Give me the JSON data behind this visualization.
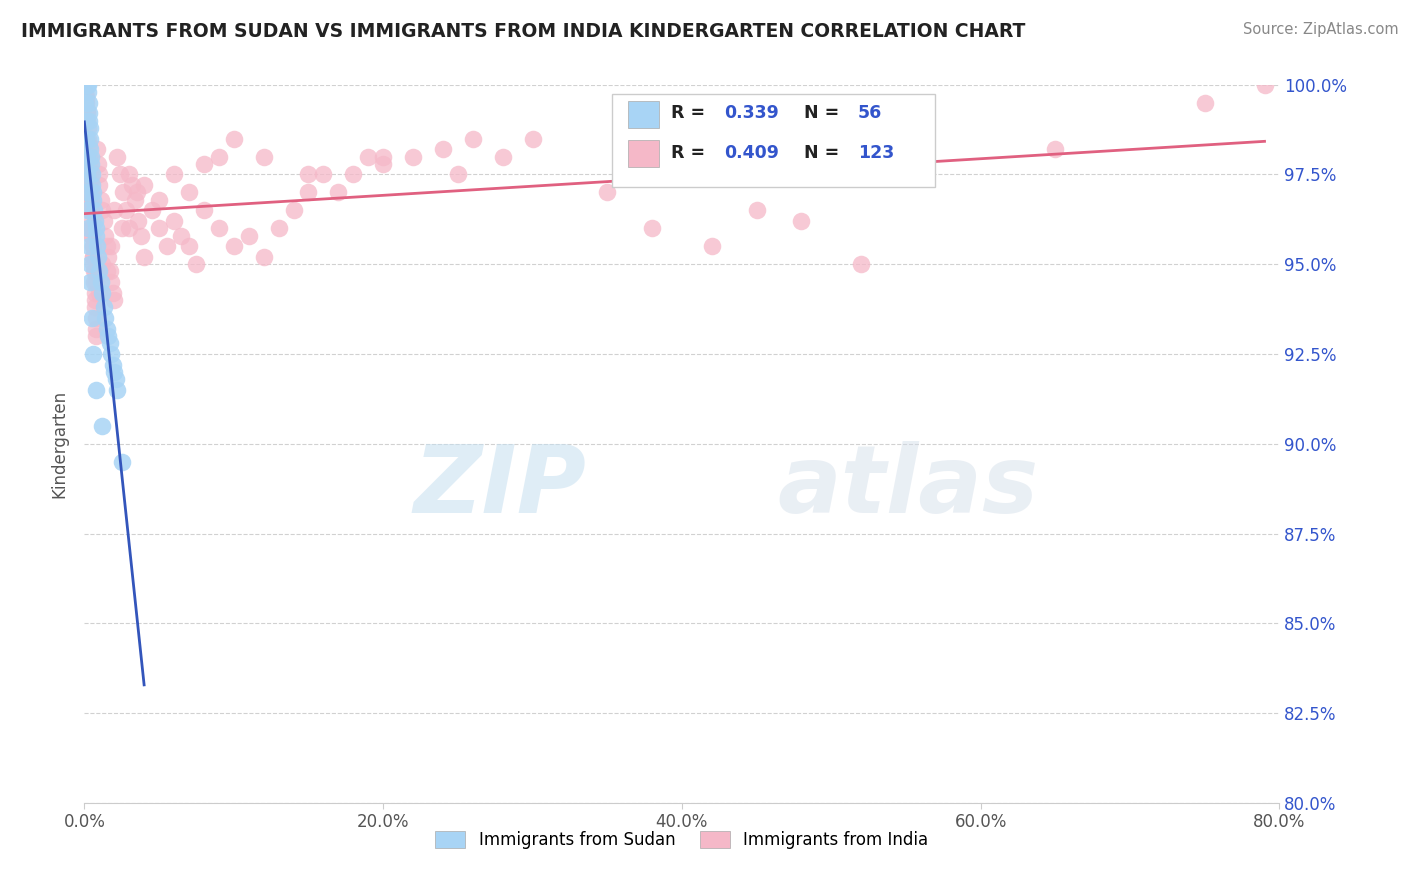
{
  "title": "IMMIGRANTS FROM SUDAN VS IMMIGRANTS FROM INDIA KINDERGARTEN CORRELATION CHART",
  "source": "Source: ZipAtlas.com",
  "ylabel": "Kindergarten",
  "x_tick_labels": [
    "0.0%",
    "20.0%",
    "40.0%",
    "60.0%",
    "80.0%"
  ],
  "y_tick_labels_right": [
    "80.0%",
    "82.5%",
    "85.0%",
    "87.5%",
    "90.0%",
    "92.5%",
    "95.0%",
    "97.5%",
    "100.0%"
  ],
  "xlim": [
    0.0,
    80.0
  ],
  "ylim": [
    80.0,
    100.0
  ],
  "legend_label1": "Immigrants from Sudan",
  "legend_label2": "Immigrants from India",
  "R1": 0.339,
  "N1": 56,
  "R2": 0.409,
  "N2": 123,
  "color_sudan": "#a8d4f5",
  "color_india": "#f5b8c8",
  "color_sudan_line": "#3355bb",
  "color_india_line": "#e06080",
  "color_r_value": "#3355cc",
  "watermark_zip": "ZIP",
  "watermark_atlas": "atlas",
  "sudan_x": [
    0.05,
    0.08,
    0.1,
    0.12,
    0.15,
    0.18,
    0.2,
    0.22,
    0.25,
    0.28,
    0.3,
    0.32,
    0.35,
    0.38,
    0.4,
    0.42,
    0.45,
    0.48,
    0.5,
    0.55,
    0.6,
    0.65,
    0.7,
    0.75,
    0.8,
    0.85,
    0.9,
    1.0,
    1.1,
    1.2,
    1.3,
    1.4,
    1.5,
    1.6,
    1.7,
    1.8,
    1.9,
    2.0,
    2.1,
    2.2,
    0.05,
    0.08,
    0.1,
    0.12,
    0.15,
    0.18,
    0.2,
    0.25,
    0.3,
    0.35,
    0.4,
    0.5,
    0.6,
    0.8,
    1.2,
    2.5
  ],
  "sudan_y": [
    100.0,
    100.0,
    100.0,
    100.0,
    100.0,
    100.0,
    100.0,
    100.0,
    99.8,
    99.5,
    99.2,
    99.0,
    98.8,
    98.5,
    98.2,
    98.0,
    97.8,
    97.5,
    97.2,
    97.0,
    96.8,
    96.5,
    96.2,
    96.0,
    95.8,
    95.5,
    95.2,
    94.8,
    94.5,
    94.2,
    93.8,
    93.5,
    93.2,
    93.0,
    92.8,
    92.5,
    92.2,
    92.0,
    91.8,
    91.5,
    99.5,
    99.0,
    98.5,
    98.0,
    97.5,
    97.0,
    96.5,
    96.0,
    95.5,
    95.0,
    94.5,
    93.5,
    92.5,
    91.5,
    90.5,
    89.5
  ],
  "india_x": [
    0.05,
    0.08,
    0.1,
    0.12,
    0.15,
    0.18,
    0.2,
    0.22,
    0.25,
    0.28,
    0.3,
    0.32,
    0.35,
    0.38,
    0.4,
    0.42,
    0.45,
    0.48,
    0.5,
    0.52,
    0.55,
    0.58,
    0.6,
    0.62,
    0.65,
    0.68,
    0.7,
    0.72,
    0.75,
    0.78,
    0.8,
    0.85,
    0.9,
    0.95,
    1.0,
    1.1,
    1.2,
    1.3,
    1.4,
    1.5,
    1.6,
    1.7,
    1.8,
    1.9,
    2.0,
    2.2,
    2.4,
    2.6,
    2.8,
    3.0,
    3.2,
    3.4,
    3.6,
    3.8,
    4.0,
    4.5,
    5.0,
    5.5,
    6.0,
    6.5,
    7.0,
    7.5,
    8.0,
    9.0,
    10.0,
    11.0,
    12.0,
    13.0,
    14.0,
    15.0,
    16.0,
    17.0,
    18.0,
    19.0,
    20.0,
    22.0,
    24.0,
    26.0,
    28.0,
    30.0,
    0.1,
    0.15,
    0.2,
    0.25,
    0.3,
    0.35,
    0.4,
    0.45,
    0.5,
    0.55,
    0.6,
    0.7,
    0.8,
    0.9,
    1.0,
    1.2,
    1.5,
    1.8,
    2.0,
    2.5,
    3.0,
    3.5,
    4.0,
    5.0,
    6.0,
    7.0,
    8.0,
    9.0,
    10.0,
    12.0,
    15.0,
    20.0,
    25.0,
    35.0,
    45.0,
    55.0,
    65.0,
    75.0,
    79.0,
    38.0,
    42.0,
    48.0,
    52.0
  ],
  "india_y": [
    99.8,
    99.7,
    99.6,
    99.5,
    99.3,
    99.2,
    99.0,
    98.8,
    98.5,
    98.3,
    98.0,
    97.8,
    97.5,
    97.3,
    97.0,
    96.8,
    96.5,
    96.2,
    96.0,
    95.8,
    95.5,
    95.2,
    95.0,
    94.8,
    94.5,
    94.2,
    94.0,
    93.8,
    93.5,
    93.2,
    93.0,
    98.2,
    97.8,
    97.5,
    97.2,
    96.8,
    96.5,
    96.2,
    95.8,
    95.5,
    95.2,
    94.8,
    94.5,
    94.2,
    94.0,
    98.0,
    97.5,
    97.0,
    96.5,
    96.0,
    97.2,
    96.8,
    96.2,
    95.8,
    95.2,
    96.5,
    96.0,
    95.5,
    96.2,
    95.8,
    95.5,
    95.0,
    96.5,
    96.0,
    95.5,
    95.8,
    95.2,
    96.0,
    96.5,
    97.0,
    97.5,
    97.0,
    97.5,
    98.0,
    97.8,
    98.0,
    98.2,
    98.5,
    98.0,
    98.5,
    98.5,
    98.0,
    97.5,
    97.8,
    97.2,
    96.8,
    96.5,
    96.0,
    95.8,
    95.5,
    95.2,
    94.8,
    94.5,
    94.8,
    94.2,
    95.0,
    94.8,
    95.5,
    96.5,
    96.0,
    97.5,
    97.0,
    97.2,
    96.8,
    97.5,
    97.0,
    97.8,
    98.0,
    98.5,
    98.0,
    97.5,
    98.0,
    97.5,
    97.0,
    96.5,
    97.5,
    98.2,
    99.5,
    100.0,
    96.0,
    95.5,
    96.2,
    95.0
  ]
}
